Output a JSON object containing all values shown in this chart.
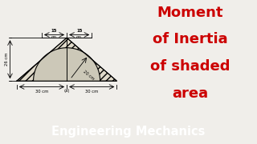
{
  "left_bg": "#ddd8c8",
  "right_bg": "#f0eeea",
  "banner_color": "#ee1111",
  "banner_text": "Engineering Mechanics",
  "banner_text_color": "#ffffff",
  "title_lines": [
    "Moment",
    "of Inertia",
    "of shaded",
    "area"
  ],
  "title_color": "#cc0000",
  "hatch_pattern": "////",
  "hatch_color": "#888888",
  "fill_color": "#e0daca",
  "sc_bg_color": "#ccc8b8",
  "label_a": "(a)"
}
